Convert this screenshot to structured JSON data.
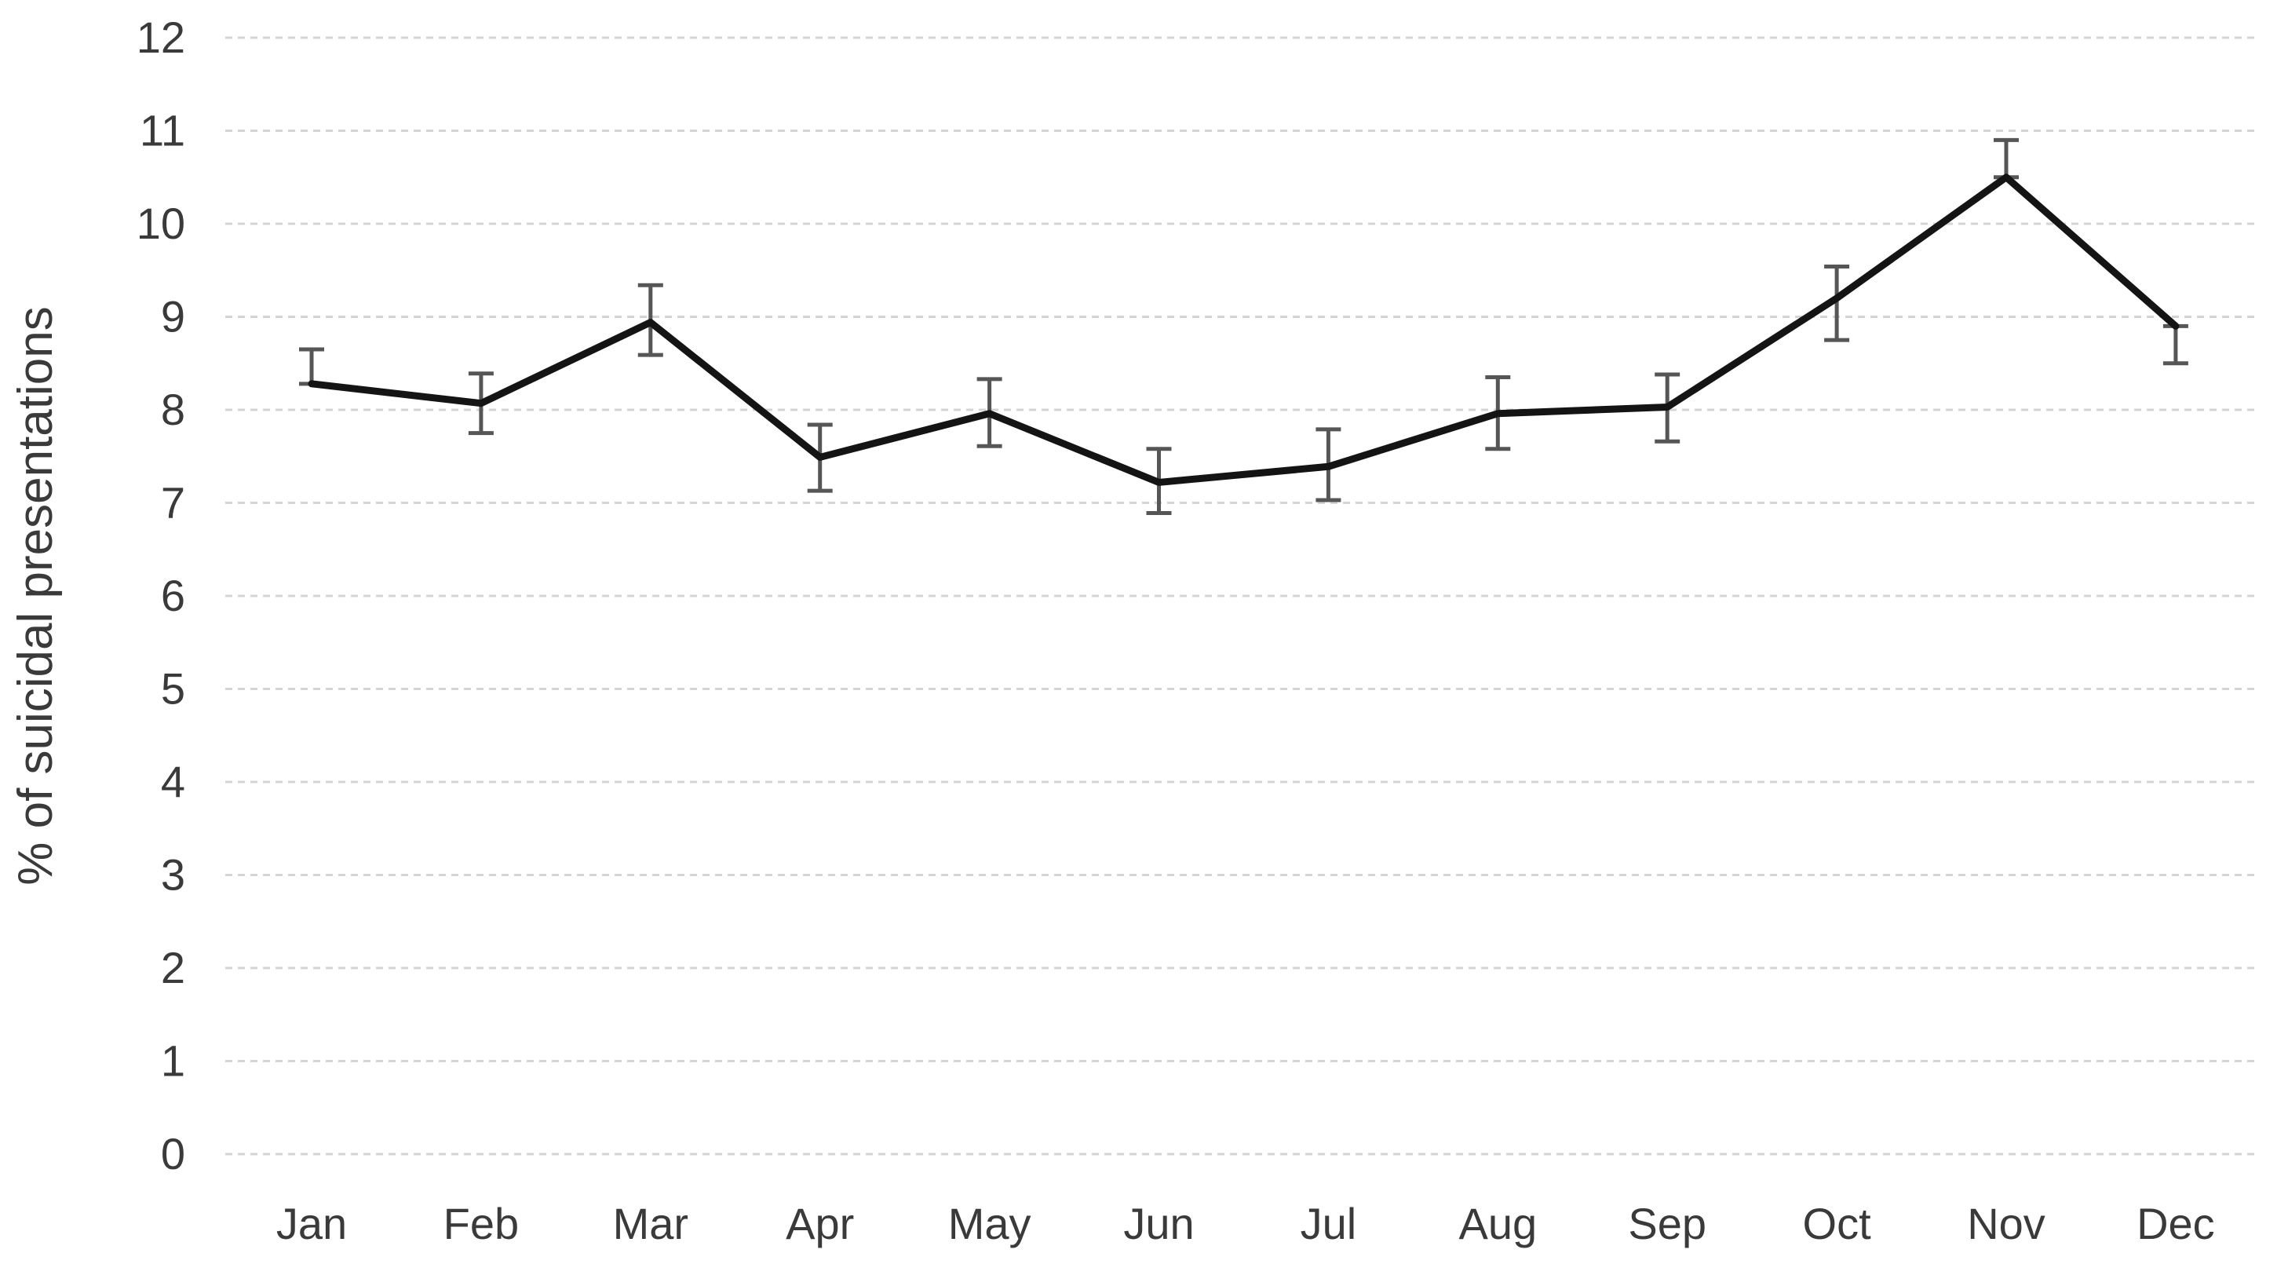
{
  "figure": {
    "background": "#ffffff",
    "text_color": "#3a3a3a",
    "grid_color": "#d4d4d4",
    "line_color": "#141414",
    "error_bar_color": "#565656"
  },
  "chart_data": {
    "type": "line",
    "title": "",
    "xlabel": "",
    "ylabel": "% of suicidal presentations",
    "categories": [
      "Jan",
      "Feb",
      "Mar",
      "Apr",
      "May",
      "Jun",
      "Jul",
      "Aug",
      "Sep",
      "Oct",
      "Nov",
      "Dec"
    ],
    "series": [
      {
        "name": "% of suicidal presentations",
        "values": [
          8.28,
          8.07,
          8.94,
          7.49,
          7.96,
          7.22,
          7.39,
          7.96,
          8.03,
          9.2,
          10.5,
          8.9
        ],
        "error_low": [
          8.28,
          7.75,
          8.59,
          7.13,
          7.61,
          6.89,
          7.03,
          7.58,
          7.66,
          8.75,
          10.5,
          8.5
        ],
        "error_high": [
          8.65,
          8.39,
          9.34,
          7.84,
          8.33,
          7.58,
          7.79,
          8.35,
          8.38,
          9.54,
          10.9,
          8.9
        ]
      }
    ],
    "ylim": [
      0,
      12
    ],
    "yticks": [
      0,
      1,
      2,
      3,
      4,
      5,
      6,
      7,
      8,
      9,
      10,
      11,
      12
    ],
    "grid": "horizontal dashed gridlines at every integer",
    "legend": "none",
    "markers": "none",
    "error_bars": "vertical whiskers with end caps"
  }
}
